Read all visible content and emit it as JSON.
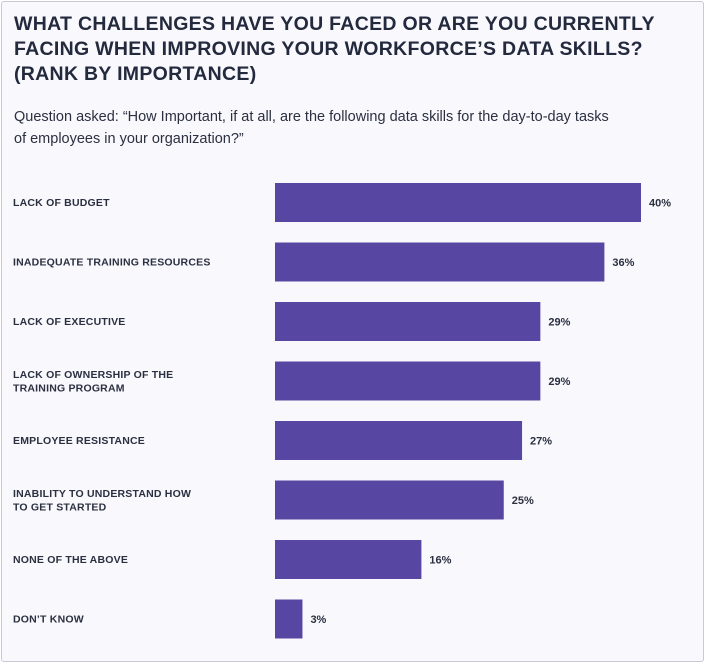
{
  "chart_data": {
    "type": "bar",
    "orientation": "horizontal",
    "title": "WHAT CHALLENGES HAVE YOU FACED OR ARE YOU CURRENTLY FACING WHEN IMPROVING YOUR WORKFORCE’S DATA SKILLS? (RANK BY IMPORTANCE)",
    "subtitle": "Question asked: “How Important, if at all, are the following data skills for the day-to-day tasks of employees in your organization?”",
    "categories": [
      [
        "LACK OF BUDGET"
      ],
      [
        "INADEQUATE TRAINING RESOURCES"
      ],
      [
        "LACK OF EXECUTIVE"
      ],
      [
        "LACK OF OWNERSHIP OF THE",
        "TRAINING PROGRAM"
      ],
      [
        "EMPLOYEE RESISTANCE"
      ],
      [
        "INABILITY TO UNDERSTAND HOW",
        "TO GET STARTED"
      ],
      [
        "NONE OF THE ABOVE"
      ],
      [
        "DON’T KNOW"
      ]
    ],
    "values": [
      40,
      36,
      29,
      29,
      27,
      25,
      16,
      3
    ],
    "value_labels": [
      "40%",
      "36%",
      "29%",
      "29%",
      "27%",
      "25%",
      "16%",
      "3%"
    ],
    "unit": "%",
    "xlim": [
      0,
      40
    ],
    "grid": false,
    "bar_color": "#5747a3"
  }
}
